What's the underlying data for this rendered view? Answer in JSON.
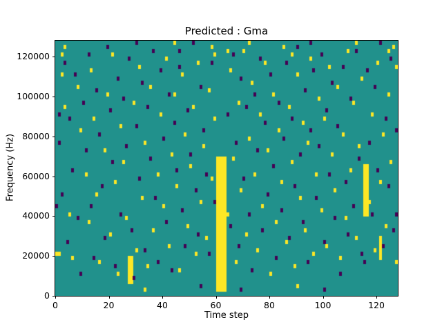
{
  "figure": {
    "title": "Predicted : Gma",
    "xlabel": "Time step",
    "ylabel": "Frequency (Hz)"
  },
  "chart_data": {
    "type": "heatmap",
    "title": "Predicted : Gma",
    "xlabel": "Time step",
    "ylabel": "Frequency (Hz)",
    "x_range": [
      0,
      128
    ],
    "y_range_hz": [
      0,
      128000
    ],
    "grid": {
      "time_steps": 128,
      "freq_bins": 64,
      "hz_per_bin": 2000
    },
    "legend": "none",
    "colors": {
      "mid": "#21918c",
      "high": "#fde725",
      "low": "#440154"
    },
    "xticks": [
      0,
      20,
      40,
      60,
      80,
      100,
      120
    ],
    "yticks": [
      0,
      20000,
      40000,
      60000,
      80000,
      100000,
      120000
    ],
    "blocks": [
      {
        "t0": 60,
        "t1": 63,
        "f0": 1,
        "f1": 34,
        "v": 1
      },
      {
        "t0": 115,
        "t1": 116,
        "f0": 20,
        "f1": 32,
        "v": 1
      },
      {
        "t0": 27,
        "t1": 28,
        "f0": 3,
        "f1": 9,
        "v": 1
      },
      {
        "t0": 121,
        "t1": 121,
        "f0": 9,
        "f1": 14,
        "v": 1
      }
    ],
    "cells_high": [
      [
        0,
        10
      ],
      [
        1,
        10
      ],
      [
        2,
        60
      ],
      [
        2,
        55
      ],
      [
        3,
        47
      ],
      [
        3,
        62
      ],
      [
        5,
        20
      ],
      [
        6,
        9
      ],
      [
        8,
        52
      ],
      [
        9,
        41
      ],
      [
        11,
        30
      ],
      [
        12,
        18
      ],
      [
        13,
        56
      ],
      [
        14,
        44
      ],
      [
        15,
        25
      ],
      [
        16,
        8
      ],
      [
        18,
        36
      ],
      [
        19,
        50
      ],
      [
        20,
        15
      ],
      [
        21,
        60
      ],
      [
        22,
        28
      ],
      [
        23,
        5
      ],
      [
        24,
        42
      ],
      [
        25,
        33
      ],
      [
        26,
        19
      ],
      [
        29,
        48
      ],
      [
        30,
        11
      ],
      [
        31,
        57
      ],
      [
        32,
        24
      ],
      [
        33,
        38
      ],
      [
        33,
        1
      ],
      [
        34,
        7
      ],
      [
        35,
        52
      ],
      [
        36,
        16
      ],
      [
        38,
        30
      ],
      [
        39,
        45
      ],
      [
        40,
        22
      ],
      [
        41,
        59
      ],
      [
        42,
        12
      ],
      [
        43,
        35
      ],
      [
        44,
        50
      ],
      [
        44,
        63
      ],
      [
        45,
        27
      ],
      [
        46,
        6
      ],
      [
        47,
        55
      ],
      [
        48,
        40
      ],
      [
        49,
        17
      ],
      [
        50,
        32
      ],
      [
        51,
        47
      ],
      [
        52,
        10
      ],
      [
        53,
        58
      ],
      [
        54,
        23
      ],
      [
        55,
        37
      ],
      [
        56,
        14
      ],
      [
        57,
        51
      ],
      [
        58,
        29
      ],
      [
        58,
        62
      ],
      [
        59,
        44
      ],
      [
        59,
        60
      ],
      [
        64,
        20
      ],
      [
        64,
        61
      ],
      [
        65,
        56
      ],
      [
        66,
        34
      ],
      [
        67,
        8
      ],
      [
        68,
        48
      ],
      [
        69,
        26
      ],
      [
        70,
        61
      ],
      [
        71,
        15
      ],
      [
        72,
        39
      ],
      [
        72,
        63
      ],
      [
        73,
        53
      ],
      [
        74,
        30
      ],
      [
        75,
        11
      ],
      [
        76,
        45
      ],
      [
        77,
        22
      ],
      [
        78,
        58
      ],
      [
        79,
        36
      ],
      [
        80,
        5
      ],
      [
        81,
        50
      ],
      [
        82,
        18
      ],
      [
        83,
        41
      ],
      [
        84,
        28
      ],
      [
        85,
        62
      ],
      [
        86,
        13
      ],
      [
        87,
        47
      ],
      [
        88,
        33
      ],
      [
        88,
        60
      ],
      [
        89,
        7
      ],
      [
        90,
        55
      ],
      [
        90,
        2
      ],
      [
        91,
        24
      ],
      [
        92,
        43
      ],
      [
        93,
        16
      ],
      [
        94,
        38
      ],
      [
        95,
        59
      ],
      [
        96,
        10
      ],
      [
        97,
        30
      ],
      [
        98,
        49
      ],
      [
        99,
        21
      ],
      [
        100,
        44
      ],
      [
        101,
        12
      ],
      [
        102,
        57
      ],
      [
        103,
        35
      ],
      [
        104,
        26
      ],
      [
        105,
        52
      ],
      [
        106,
        9
      ],
      [
        107,
        40
      ],
      [
        108,
        19
      ],
      [
        109,
        61
      ],
      [
        110,
        31
      ],
      [
        111,
        48
      ],
      [
        112,
        14
      ],
      [
        112,
        63
      ],
      [
        113,
        37
      ],
      [
        114,
        54
      ],
      [
        117,
        23
      ],
      [
        118,
        45
      ],
      [
        119,
        11
      ],
      [
        120,
        58
      ],
      [
        121,
        28
      ],
      [
        122,
        40
      ],
      [
        123,
        17
      ],
      [
        124,
        50
      ],
      [
        124,
        61
      ],
      [
        125,
        33
      ],
      [
        126,
        62
      ],
      [
        127,
        8
      ],
      [
        127,
        57
      ]
    ],
    "cells_low": [
      [
        0,
        22
      ],
      [
        1,
        38
      ],
      [
        1,
        45
      ],
      [
        2,
        25
      ],
      [
        3,
        58
      ],
      [
        4,
        13
      ],
      [
        5,
        44
      ],
      [
        6,
        31
      ],
      [
        7,
        55
      ],
      [
        8,
        19
      ],
      [
        9,
        5
      ],
      [
        10,
        48
      ],
      [
        11,
        36
      ],
      [
        12,
        60
      ],
      [
        13,
        22
      ],
      [
        14,
        9
      ],
      [
        15,
        51
      ],
      [
        16,
        40
      ],
      [
        17,
        27
      ],
      [
        18,
        14
      ],
      [
        19,
        62
      ],
      [
        20,
        46
      ],
      [
        21,
        33
      ],
      [
        22,
        7
      ],
      [
        23,
        54
      ],
      [
        24,
        20
      ],
      [
        25,
        49
      ],
      [
        26,
        37
      ],
      [
        27,
        59
      ],
      [
        28,
        16
      ],
      [
        29,
        4
      ],
      [
        30,
        42
      ],
      [
        30,
        63
      ],
      [
        31,
        29
      ],
      [
        32,
        53
      ],
      [
        33,
        11
      ],
      [
        34,
        47
      ],
      [
        35,
        34
      ],
      [
        36,
        61
      ],
      [
        37,
        24
      ],
      [
        38,
        8
      ],
      [
        39,
        56
      ],
      [
        40,
        39
      ],
      [
        41,
        18
      ],
      [
        42,
        50
      ],
      [
        43,
        6
      ],
      [
        44,
        43
      ],
      [
        45,
        31
      ],
      [
        46,
        57
      ],
      [
        46,
        61
      ],
      [
        47,
        21
      ],
      [
        48,
        12
      ],
      [
        49,
        46
      ],
      [
        50,
        35
      ],
      [
        51,
        63
      ],
      [
        52,
        26
      ],
      [
        53,
        15
      ],
      [
        54,
        52
      ],
      [
        54,
        2
      ],
      [
        55,
        41
      ],
      [
        56,
        30
      ],
      [
        57,
        10
      ],
      [
        58,
        58
      ],
      [
        59,
        23
      ],
      [
        64,
        45
      ],
      [
        65,
        17
      ],
      [
        66,
        60
      ],
      [
        67,
        38
      ],
      [
        68,
        12
      ],
      [
        69,
        54
      ],
      [
        69,
        1
      ],
      [
        70,
        29
      ],
      [
        71,
        47
      ],
      [
        72,
        20
      ],
      [
        73,
        6
      ],
      [
        74,
        50
      ],
      [
        75,
        36
      ],
      [
        76,
        59
      ],
      [
        77,
        16
      ],
      [
        78,
        43
      ],
      [
        79,
        25
      ],
      [
        80,
        55
      ],
      [
        81,
        32
      ],
      [
        82,
        9
      ],
      [
        83,
        48
      ],
      [
        84,
        21
      ],
      [
        85,
        39
      ],
      [
        86,
        58
      ],
      [
        87,
        14
      ],
      [
        88,
        44
      ],
      [
        89,
        27
      ],
      [
        90,
        62
      ],
      [
        91,
        35
      ],
      [
        92,
        18
      ],
      [
        93,
        51
      ],
      [
        94,
        8
      ],
      [
        95,
        41
      ],
      [
        95,
        63
      ],
      [
        96,
        56
      ],
      [
        97,
        24
      ],
      [
        98,
        37
      ],
      [
        99,
        60
      ],
      [
        100,
        13
      ],
      [
        100,
        1
      ],
      [
        101,
        46
      ],
      [
        102,
        30
      ],
      [
        103,
        53
      ],
      [
        104,
        19
      ],
      [
        105,
        42
      ],
      [
        106,
        5
      ],
      [
        107,
        57
      ],
      [
        108,
        28
      ],
      [
        109,
        15
      ],
      [
        110,
        49
      ],
      [
        111,
        22
      ],
      [
        112,
        61
      ],
      [
        113,
        34
      ],
      [
        114,
        10
      ],
      [
        115,
        8
      ],
      [
        116,
        56
      ],
      [
        117,
        38
      ],
      [
        118,
        20
      ],
      [
        119,
        52
      ],
      [
        120,
        31
      ],
      [
        121,
        63
      ],
      [
        122,
        12
      ],
      [
        123,
        44
      ],
      [
        124,
        27
      ],
      [
        125,
        59
      ],
      [
        126,
        16
      ],
      [
        127,
        41
      ],
      [
        127,
        20
      ]
    ]
  }
}
